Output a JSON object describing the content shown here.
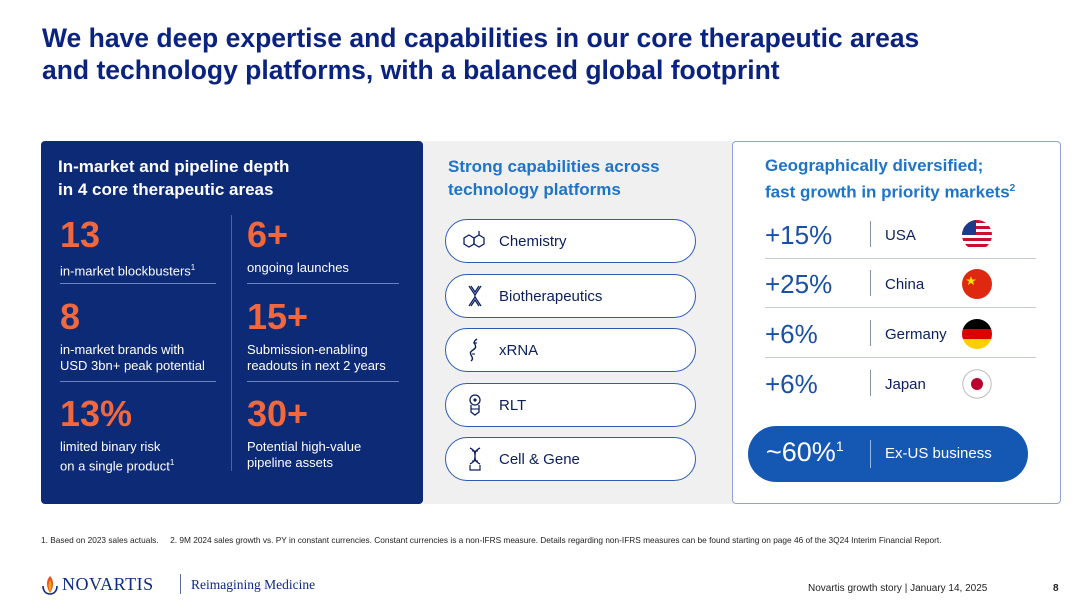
{
  "slide": {
    "title_line1": "We have deep expertise and capabilities in our core therapeutic areas",
    "title_line2": "and technology platforms, with a balanced global footprint"
  },
  "pipeline": {
    "heading_line1": "In-market and pipeline depth",
    "heading_line2": "in 4 core therapeutic areas",
    "stats": [
      {
        "value": "13",
        "label_line1": "in-market blockbusters",
        "sup": "1",
        "label_line2": ""
      },
      {
        "value": "6+",
        "label_line1": "ongoing launches",
        "label_line2": ""
      },
      {
        "value": "8",
        "label_line1": "in-market brands with",
        "label_line2": "USD 3bn+ peak potential"
      },
      {
        "value": "15+",
        "label_line1": "Submission-enabling",
        "label_line2": "readouts in next 2 years"
      },
      {
        "value": "13%",
        "label_line1": "limited binary risk",
        "label_line2": "on a single product",
        "sup": "1"
      },
      {
        "value": "30+",
        "label_line1": "Potential high-value",
        "label_line2": "pipeline assets"
      }
    ]
  },
  "platforms": {
    "heading_line1": "Strong capabilities across",
    "heading_line2": "technology platforms",
    "items": [
      {
        "label": "Chemistry",
        "icon": "chemistry-icon"
      },
      {
        "label": "Biotherapeutics",
        "icon": "antibody-icon"
      },
      {
        "label": "xRNA",
        "icon": "rna-strand-icon"
      },
      {
        "label": "RLT",
        "icon": "radioligand-icon"
      },
      {
        "label": "Cell & Gene",
        "icon": "dna-icon"
      }
    ]
  },
  "geography": {
    "heading_line1": "Geographically diversified;",
    "heading_line2": "fast growth in priority markets",
    "heading_sup": "2",
    "rows": [
      {
        "growth": "+15%",
        "country": "USA",
        "flag": "usa-flag-icon"
      },
      {
        "growth": "+25%",
        "country": "China",
        "flag": "china-flag-icon"
      },
      {
        "growth": "+6%",
        "country": "Germany",
        "flag": "germany-flag-icon"
      },
      {
        "growth": "+6%",
        "country": "Japan",
        "flag": "japan-flag-icon"
      }
    ],
    "exus_value": "~60%",
    "exus_sup": "1",
    "exus_label": "Ex-US business"
  },
  "footer": {
    "footnotes": "1. Based on 2023 sales actuals.     2. 9M 2024 sales growth vs. PY in constant currencies. Constant currencies is a non-IFRS measure. Details regarding non-IFRS measures can be found starting on page 46 of the 3Q24 Interim Financial Report.",
    "brand": "NOVARTIS",
    "tagline": "Reimagining Medicine",
    "presentation": "Novartis growth story | January 14, 2025",
    "page": "8"
  },
  "colors": {
    "navy_panel": "#0c2a76",
    "accent_orange": "#f2683e",
    "heading_blue": "#1e74c8",
    "pill_blue": "#1558b4"
  }
}
